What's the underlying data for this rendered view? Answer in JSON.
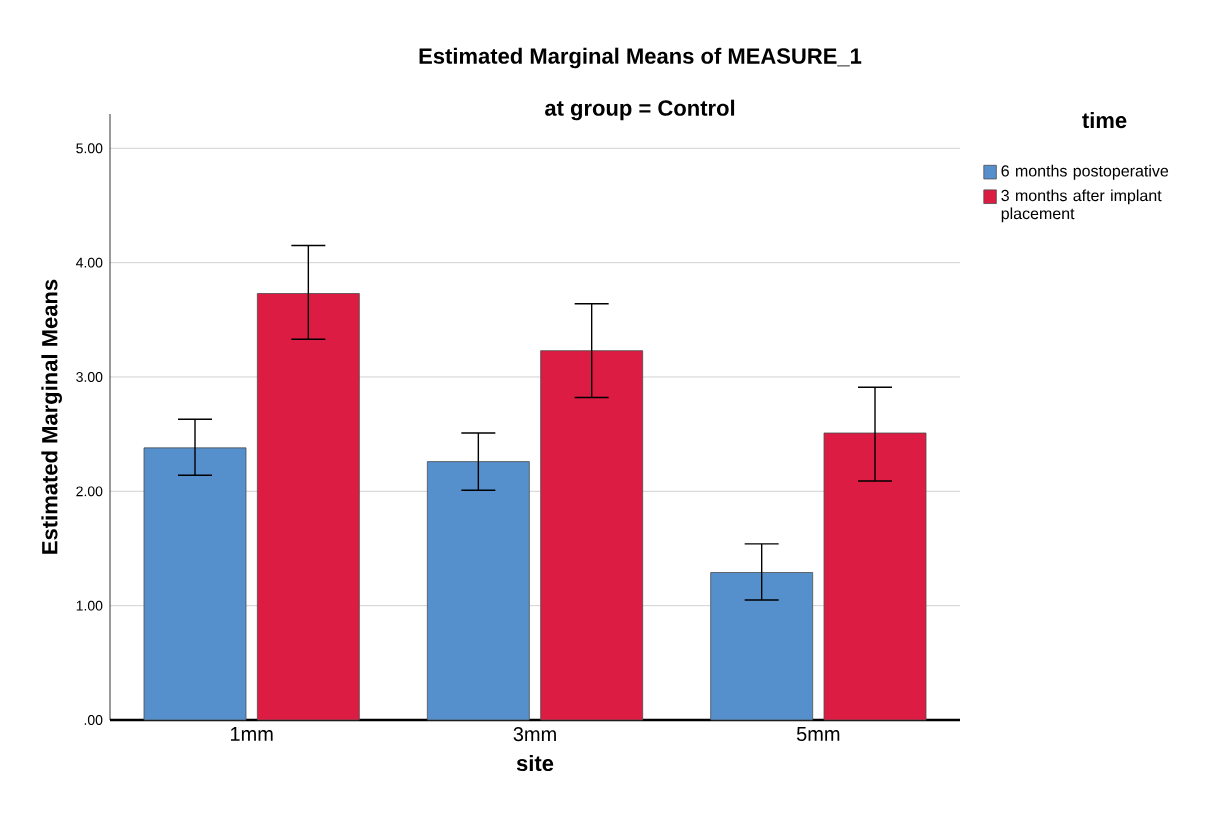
{
  "chart_data": {
    "type": "bar",
    "title": "Estimated Marginal Means of MEASURE_1",
    "subtitle": "at group = Control",
    "xlabel": "site",
    "ylabel": "Estimated Marginal Means",
    "legend_title": "time",
    "categories": [
      "1mm",
      "3mm",
      "5mm"
    ],
    "series": [
      {
        "name": "6 months postoperative",
        "color": "#5590cc",
        "values": [
          2.38,
          2.26,
          1.29
        ],
        "errors": [
          [
            2.14,
            2.63
          ],
          [
            2.01,
            2.51
          ],
          [
            1.05,
            1.54
          ]
        ]
      },
      {
        "name": "3 months after implant placement",
        "color": "#dc1c42",
        "values": [
          3.73,
          3.23,
          2.51
        ],
        "errors": [
          [
            3.33,
            4.15
          ],
          [
            2.82,
            3.64
          ],
          [
            2.09,
            2.91
          ]
        ]
      }
    ],
    "ylim": [
      0,
      5.3
    ],
    "yticks": [
      {
        "value": 0,
        "label": ".00"
      },
      {
        "value": 1,
        "label": "1.00"
      },
      {
        "value": 2,
        "label": "2.00"
      },
      {
        "value": 3,
        "label": "3.00"
      },
      {
        "value": 4,
        "label": "4.00"
      },
      {
        "value": 5,
        "label": "5.00"
      }
    ],
    "grid": "y",
    "legend": "top right"
  }
}
